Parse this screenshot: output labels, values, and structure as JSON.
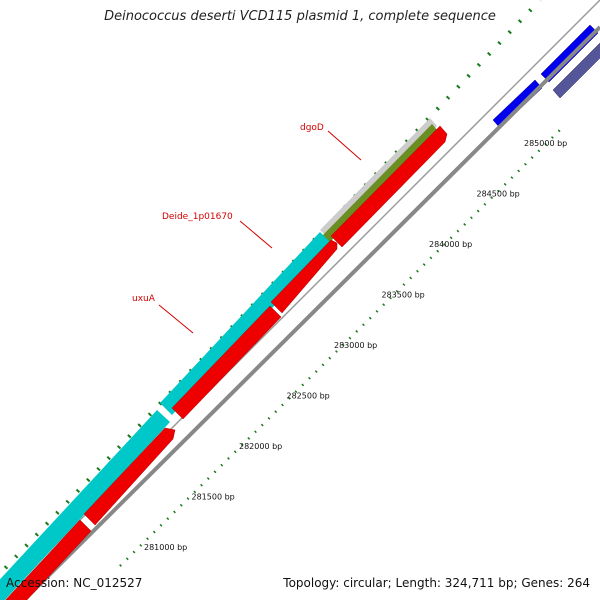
{
  "title": "Deinococcus deserti VCD115 plasmid 1, complete sequence",
  "footer": {
    "accession": "Accession: NC_012527",
    "summary": "Topology: circular; Length: 324,711 bp; Genes: 264"
  },
  "colors": {
    "backbone": "#8a8a8a",
    "cds_forward": "#ff0000",
    "gene_track": "#00cccc",
    "go_track": "#6b8e23",
    "blue_feature": "#0000ff",
    "navy_feature": "#444488",
    "tick_marks": "#1a7a1a",
    "labels": "#d40000"
  },
  "ruler": [
    {
      "bp": 281000,
      "label": "281000 bp"
    },
    {
      "bp": 281500,
      "label": "281500 bp"
    },
    {
      "bp": 282000,
      "label": "282000 bp"
    },
    {
      "bp": 282500,
      "label": "282500 bp"
    },
    {
      "bp": 283000,
      "label": "283000 bp"
    },
    {
      "bp": 283500,
      "label": "283500 bp"
    },
    {
      "bp": 284000,
      "label": "284000 bp"
    },
    {
      "bp": 284500,
      "label": "284500 bp"
    },
    {
      "bp": 285000,
      "label": "285000 bp"
    }
  ],
  "gene_labels": [
    {
      "id": "dgoD",
      "text": "dgoD"
    },
    {
      "id": "deide",
      "text": "Deide_1p01670"
    },
    {
      "id": "uxuA",
      "text": "uxuA"
    }
  ]
}
